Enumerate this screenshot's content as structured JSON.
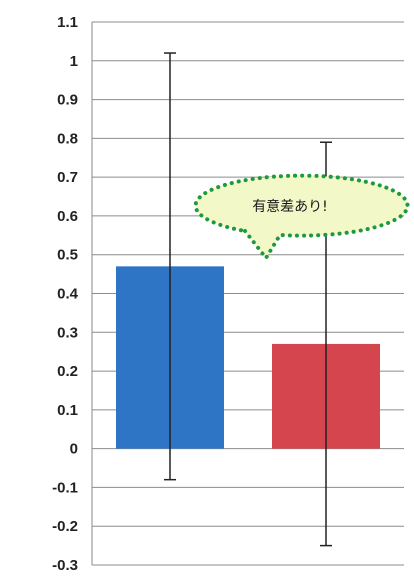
{
  "chart_data": {
    "type": "bar",
    "categories": [
      "",
      ""
    ],
    "values": [
      0.47,
      0.27
    ],
    "error_bars": [
      {
        "low": -0.08,
        "high": 1.02
      },
      {
        "low": -0.25,
        "high": 0.79
      }
    ],
    "series_colors": [
      "#2e75c6",
      "#d4454e"
    ],
    "ylim": [
      -0.3,
      1.1
    ],
    "yticks": [
      "1.1",
      "1",
      "0.9",
      "0.8",
      "0.7",
      "0.6",
      "0.5",
      "0.4",
      "0.3",
      "0.2",
      "0.1",
      "0",
      "-0.1",
      "-0.2",
      "-0.3"
    ],
    "grid": true,
    "title": "",
    "xlabel": "",
    "ylabel": "",
    "annotation": {
      "text": "有意差あり!",
      "shape": "speech-bubble-dotted",
      "fill": "#f3f8c8",
      "border": "#1f9a3a"
    }
  }
}
